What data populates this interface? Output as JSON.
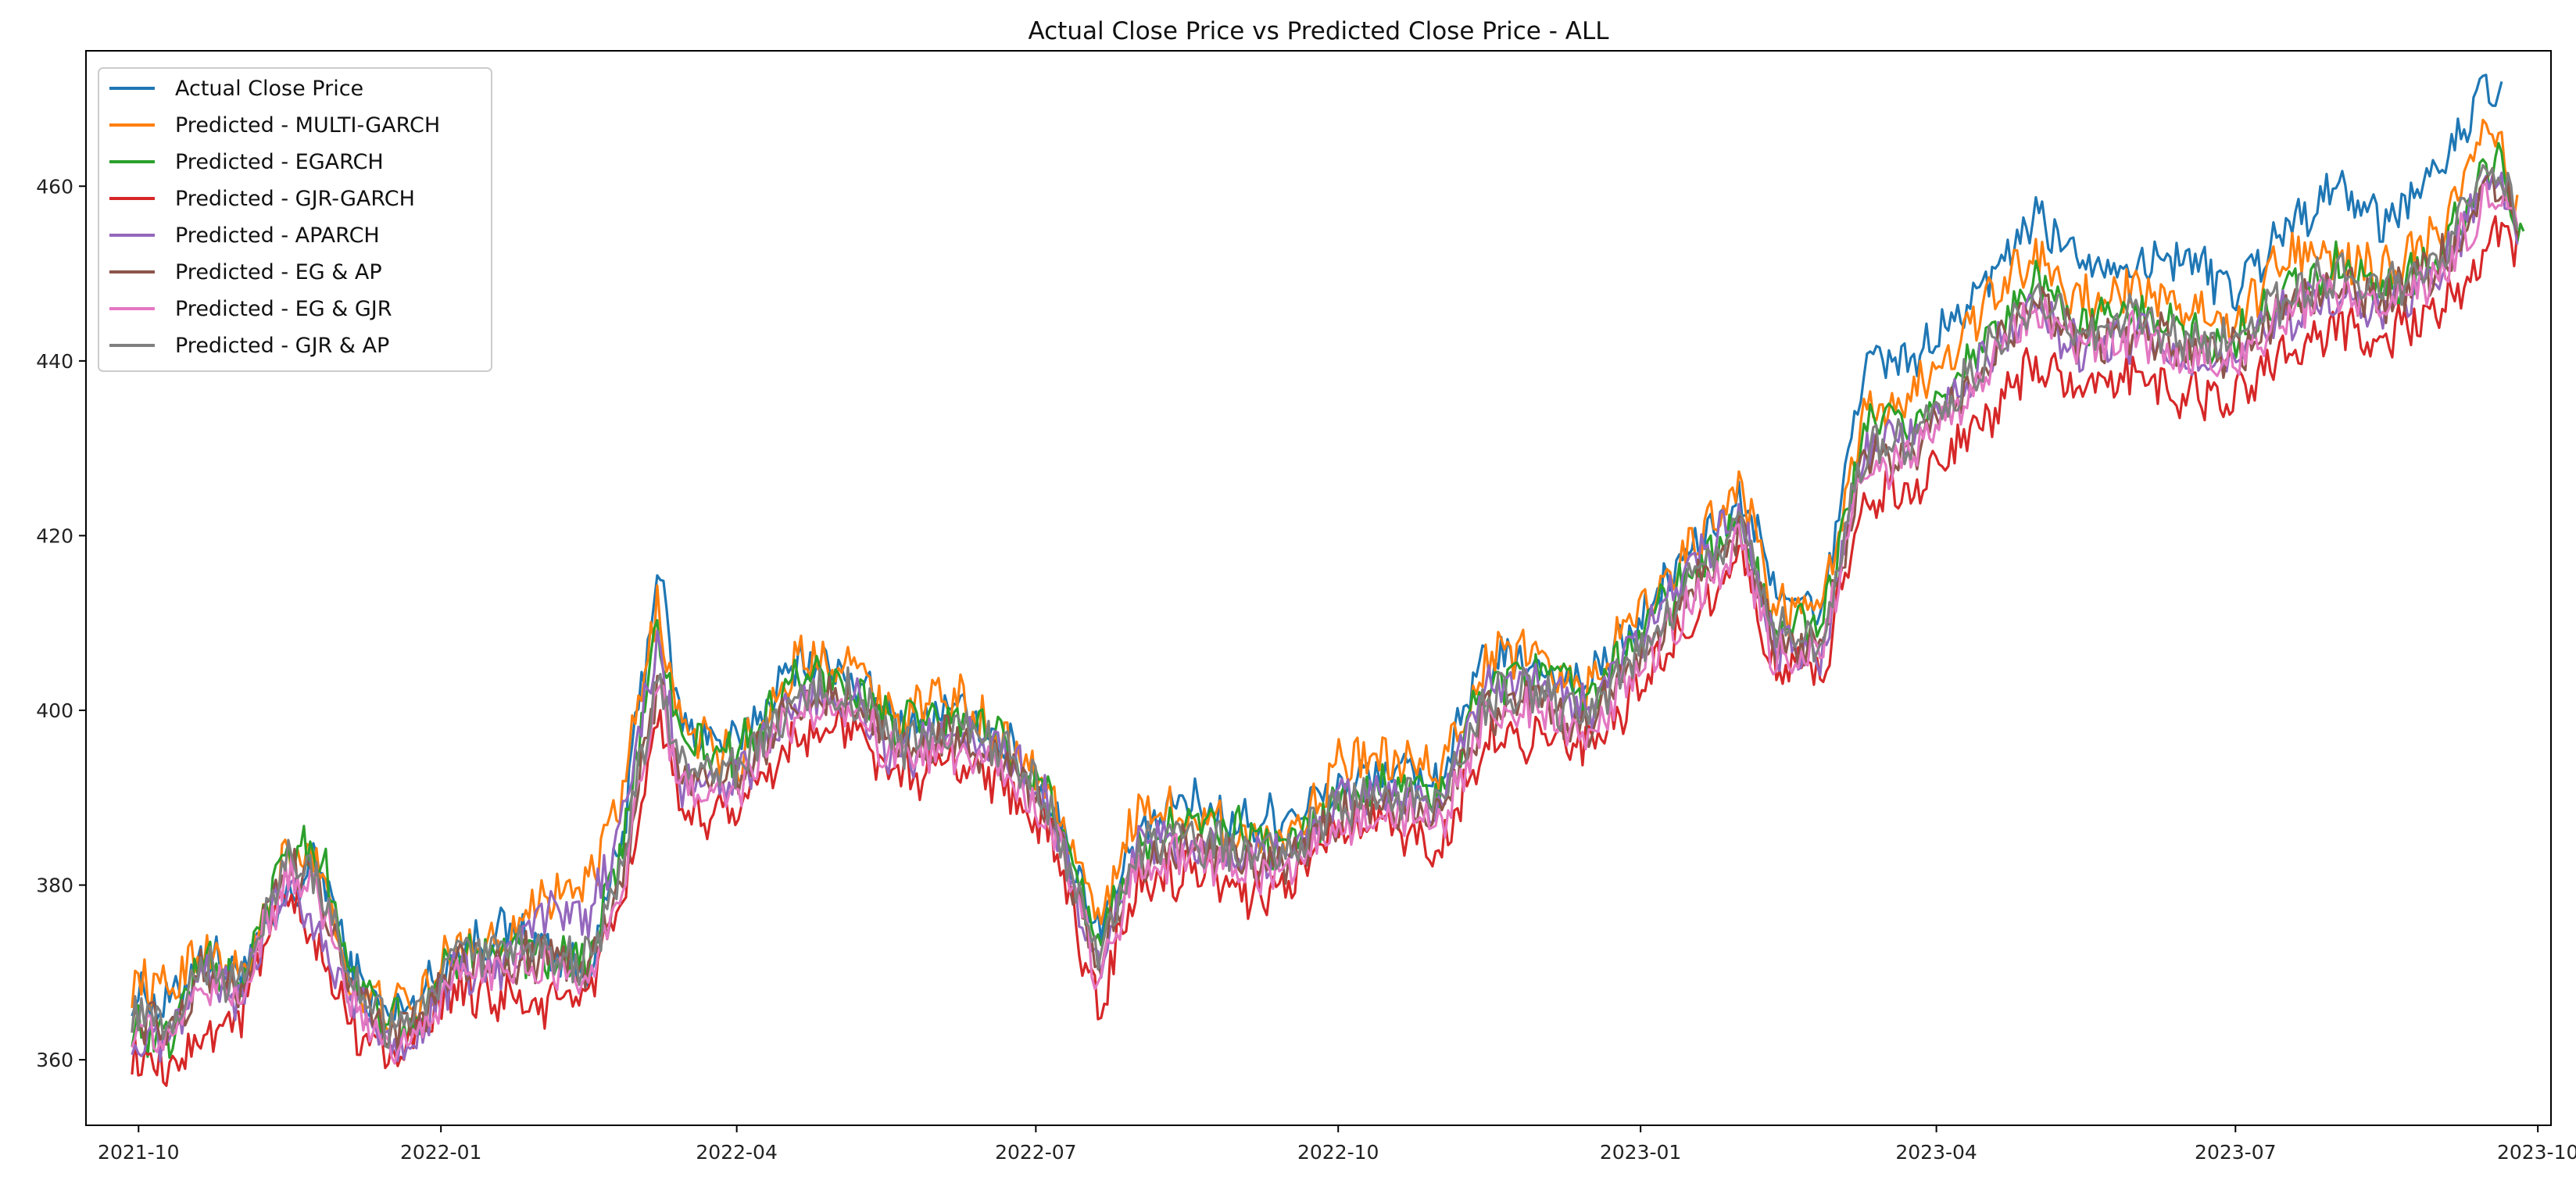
{
  "chart_data": {
    "type": "line",
    "title": "Actual Close Price vs Predicted Close Price - ALL",
    "xlabel": "",
    "ylabel": "",
    "grid": false,
    "legend_position": "top-left",
    "x_range": [
      "2021-09-15",
      "2023-10-05"
    ],
    "ylim": [
      352.5,
      475.5
    ],
    "x_ticks": [
      "2021-10",
      "2022-01",
      "2022-04",
      "2022-07",
      "2022-10",
      "2023-01",
      "2023-04",
      "2023-07",
      "2023-10"
    ],
    "y_ticks": [
      360,
      380,
      400,
      420,
      440,
      460
    ],
    "x": [
      "2021-09-29",
      "2021-10-10",
      "2021-10-20",
      "2021-11-01",
      "2021-11-15",
      "2021-11-25",
      "2021-12-05",
      "2021-12-15",
      "2021-12-25",
      "2022-01-05",
      "2022-01-20",
      "2022-02-01",
      "2022-02-15",
      "2022-02-25",
      "2022-03-08",
      "2022-03-15",
      "2022-04-01",
      "2022-04-20",
      "2022-05-05",
      "2022-05-20",
      "2022-06-05",
      "2022-06-20",
      "2022-07-05",
      "2022-07-20",
      "2022-08-01",
      "2022-08-15",
      "2022-09-01",
      "2022-09-15",
      "2022-10-01",
      "2022-10-15",
      "2022-11-01",
      "2022-11-15",
      "2022-12-01",
      "2022-12-15",
      "2023-01-01",
      "2023-01-15",
      "2023-02-01",
      "2023-02-10",
      "2023-02-25",
      "2023-03-10",
      "2023-03-25",
      "2023-04-15",
      "2023-05-01",
      "2023-05-15",
      "2023-06-01",
      "2023-06-15",
      "2023-07-01",
      "2023-07-15",
      "2023-08-01",
      "2023-08-15",
      "2023-09-01",
      "2023-09-15",
      "2023-09-20",
      "2023-09-25"
    ],
    "series": [
      {
        "name": "Actual Close Price",
        "color": "#1f77b4",
        "end": "2023-09-20",
        "values": [
          368,
          366,
          372,
          370,
          378,
          383,
          370,
          365,
          367,
          372,
          375,
          373,
          370,
          385,
          417,
          398,
          396,
          406,
          404,
          398,
          400,
          397,
          390,
          375,
          385,
          390,
          387,
          388,
          391,
          393,
          392,
          406,
          405,
          403,
          410,
          418,
          424,
          415,
          410,
          440,
          440,
          448,
          457,
          452,
          451,
          452,
          448,
          455,
          460,
          456,
          462,
          471,
          470,
          470
        ]
      },
      {
        "name": "Predicted - MULTI-GARCH",
        "color": "#ff7f0e",
        "end": "2023-09-25",
        "values": [
          369,
          368,
          373,
          369,
          383,
          383,
          368,
          366,
          366,
          373,
          374,
          379,
          380,
          390,
          412,
          398,
          394,
          406,
          406,
          399,
          402,
          397,
          391,
          376,
          389,
          388,
          386,
          385,
          394,
          394,
          393,
          406,
          407,
          402,
          412,
          418,
          426,
          412,
          411,
          434,
          436,
          446,
          452,
          447,
          448,
          446,
          444,
          452,
          452,
          450,
          455,
          466,
          464,
          458
        ]
      },
      {
        "name": "Predicted - EGARCH",
        "color": "#2ca02c",
        "end": "2023-09-27",
        "values": [
          364,
          362,
          372,
          368,
          385,
          384,
          370,
          364,
          364,
          372,
          373,
          372,
          371,
          384,
          410,
          396,
          395,
          404,
          403,
          398,
          399,
          397,
          390,
          374,
          384,
          387,
          386,
          384,
          390,
          392,
          390,
          403,
          405,
          401,
          409,
          415,
          421,
          410,
          409,
          432,
          433,
          441,
          450,
          444,
          446,
          443,
          442,
          448,
          451,
          448,
          452,
          462,
          462,
          454
        ]
      },
      {
        "name": "Predicted - GJR-GARCH",
        "color": "#d62728",
        "end": "2023-09-25",
        "values": [
          360,
          358,
          363,
          365,
          379,
          372,
          364,
          361,
          362,
          368,
          367,
          366,
          368,
          377,
          400,
          387,
          389,
          397,
          398,
          392,
          394,
          392,
          386,
          366,
          380,
          381,
          379,
          380,
          386,
          387,
          384,
          397,
          397,
          395,
          402,
          410,
          418,
          405,
          404,
          425,
          425,
          433,
          440,
          436,
          439,
          436,
          436,
          441,
          444,
          443,
          446,
          452,
          455,
          452
        ]
      },
      {
        "name": "Predicted - APARCH",
        "color": "#9467bd",
        "end": "2023-09-25",
        "values": [
          362,
          361,
          370,
          367,
          381,
          374,
          367,
          362,
          363,
          370,
          370,
          377,
          376,
          387,
          408,
          391,
          392,
          401,
          402,
          394,
          398,
          396,
          389,
          371,
          384,
          385,
          383,
          383,
          390,
          390,
          389,
          402,
          403,
          400,
          408,
          416,
          422,
          408,
          406,
          430,
          431,
          440,
          446,
          441,
          443,
          440,
          440,
          445,
          447,
          446,
          450,
          460,
          462,
          452
        ]
      },
      {
        "name": "Predicted - EG & AP",
        "color": "#8c564b",
        "end": "2023-09-25",
        "values": [
          365,
          363,
          370,
          368,
          382,
          380,
          368,
          363,
          364,
          371,
          371,
          372,
          370,
          381,
          404,
          392,
          392,
          401,
          401,
          395,
          397,
          395,
          388,
          371,
          383,
          384,
          383,
          382,
          388,
          389,
          388,
          400,
          401,
          398,
          406,
          413,
          420,
          408,
          407,
          429,
          430,
          439,
          447,
          442,
          444,
          441,
          441,
          446,
          449,
          447,
          451,
          459,
          460,
          456
        ]
      },
      {
        "name": "Predicted - EG & GJR",
        "color": "#e377c2",
        "end": "2023-09-25",
        "values": [
          364,
          362,
          369,
          367,
          381,
          379,
          367,
          362,
          363,
          370,
          370,
          371,
          369,
          380,
          403,
          391,
          391,
          400,
          400,
          394,
          396,
          394,
          387,
          370,
          382,
          383,
          382,
          381,
          387,
          388,
          387,
          399,
          400,
          397,
          405,
          412,
          419,
          407,
          406,
          428,
          429,
          438,
          446,
          441,
          443,
          440,
          440,
          445,
          448,
          446,
          450,
          458,
          459,
          455
        ]
      },
      {
        "name": "Predicted - GJR & AP",
        "color": "#7f7f7f",
        "end": "2023-09-25",
        "values": [
          366,
          364,
          371,
          369,
          383,
          381,
          369,
          364,
          365,
          372,
          372,
          373,
          371,
          382,
          405,
          393,
          393,
          402,
          402,
          396,
          398,
          396,
          389,
          372,
          384,
          385,
          384,
          383,
          389,
          390,
          389,
          401,
          402,
          399,
          407,
          414,
          421,
          409,
          408,
          430,
          431,
          440,
          448,
          443,
          445,
          442,
          442,
          447,
          450,
          448,
          452,
          460,
          461,
          457
        ]
      }
    ]
  }
}
